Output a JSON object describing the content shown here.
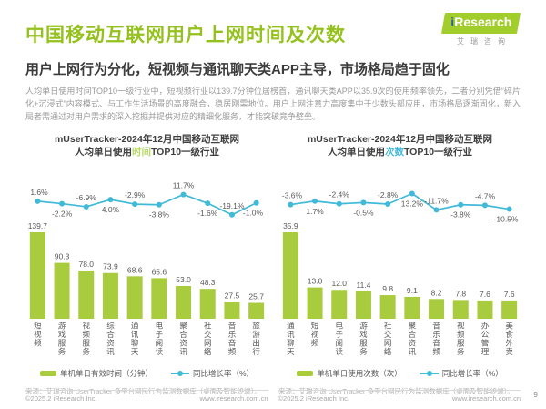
{
  "page": {
    "title": "中国移动互联网用户上网时间及次数",
    "page_number": "9"
  },
  "logo": {
    "i": "i",
    "research": "Research",
    "subtext": "艾瑞咨询"
  },
  "subtitle": "用户上网行为分化，短视频与通讯聊天类APP主导，市场格局趋于固化",
  "paragraph": "人均单日使用时间TOP10一级行业中，短视频行业以139.7分钟位居榜首，通讯聊天类APP以35.9次的使用频率领先，二者分别凭借“碎片化+沉浸式”内容模式、与工作生活场景的高度融合，稳居刚需地位。用户上网注意力高度集中于少数头部应用，市场格局逐渐固化，新入局者需通过对用户需求的深入挖掘并提供对应的精细化服务，才能突破竞争壁垒。",
  "colors": {
    "brand_green": "#95c11e",
    "bar_green": "#a8cc3e",
    "line_cyan": "#41b9d9",
    "time_highlight": "#b8d964",
    "count_highlight": "#45b8d9",
    "value_label": "#595959"
  },
  "footer": {
    "copyright": "©2025.2 iResearch Inc.",
    "website": "www.iresearch.com.cn"
  },
  "chart_data": [
    {
      "type": "bar",
      "title_line1": "mUserTracker-2024年12月中国移动互联网",
      "title_line2_pre": "人均单日使用",
      "title_highlight": "时间",
      "title_line2_post": "TOP10一级行业",
      "categories": [
        "短视频",
        "游戏服务",
        "视频服务",
        "综合资讯",
        "通讯聊天",
        "电子阅读",
        "聚合资讯",
        "社交网络",
        "音乐音频",
        "旅游出行"
      ],
      "series": [
        {
          "name": "单机单日有效时间（分钟）",
          "type": "bar",
          "values": [
            139.7,
            90.3,
            78.0,
            73.9,
            68.6,
            65.6,
            53.0,
            48.3,
            27.5,
            25.7
          ]
        },
        {
          "name": "同比增长率（%）",
          "type": "line",
          "values": [
            1.6,
            -2.2,
            -6.9,
            4.0,
            -2.9,
            -3.8,
            11.7,
            -1.6,
            -19.1,
            -1.0
          ]
        }
      ],
      "legend_bar": "单机单日有效时间（分钟）",
      "legend_line": "同比增长率（%）",
      "source": "来源：艾瑞咨询 UserTracker 多平台网民行为监测数据库（桌面及智能终端）。"
    },
    {
      "type": "bar",
      "title_line1": "mUserTracker-2024年12月中国移动互联网",
      "title_line2_pre": "人均单日使用",
      "title_highlight": "次数",
      "title_line2_post": "TOP10一级行业",
      "categories": [
        "通讯聊天",
        "短视频",
        "电子阅读",
        "游戏服务",
        "社交网络",
        "聚合资讯",
        "音乐音频",
        "视频服务",
        "办公管理",
        "美食外卖"
      ],
      "series": [
        {
          "name": "单机单日使用次数（次）",
          "type": "bar",
          "values": [
            35.9,
            13.0,
            12.0,
            11.4,
            9.8,
            9.1,
            8.2,
            7.8,
            7.6,
            7.6
          ]
        },
        {
          "name": "同比增长率（%）",
          "type": "line",
          "values": [
            -3.6,
            1.7,
            -2.4,
            -0.5,
            -2.8,
            13.2,
            -11.7,
            -3.8,
            -4.7,
            -10.5
          ]
        }
      ],
      "legend_bar": "单机单日使用次数（次）",
      "legend_line": "同比增长率（%）",
      "source": "来源：艾瑞咨询 UserTracker 多平台网民行为监测数据库（桌面及智能终端）。"
    }
  ]
}
